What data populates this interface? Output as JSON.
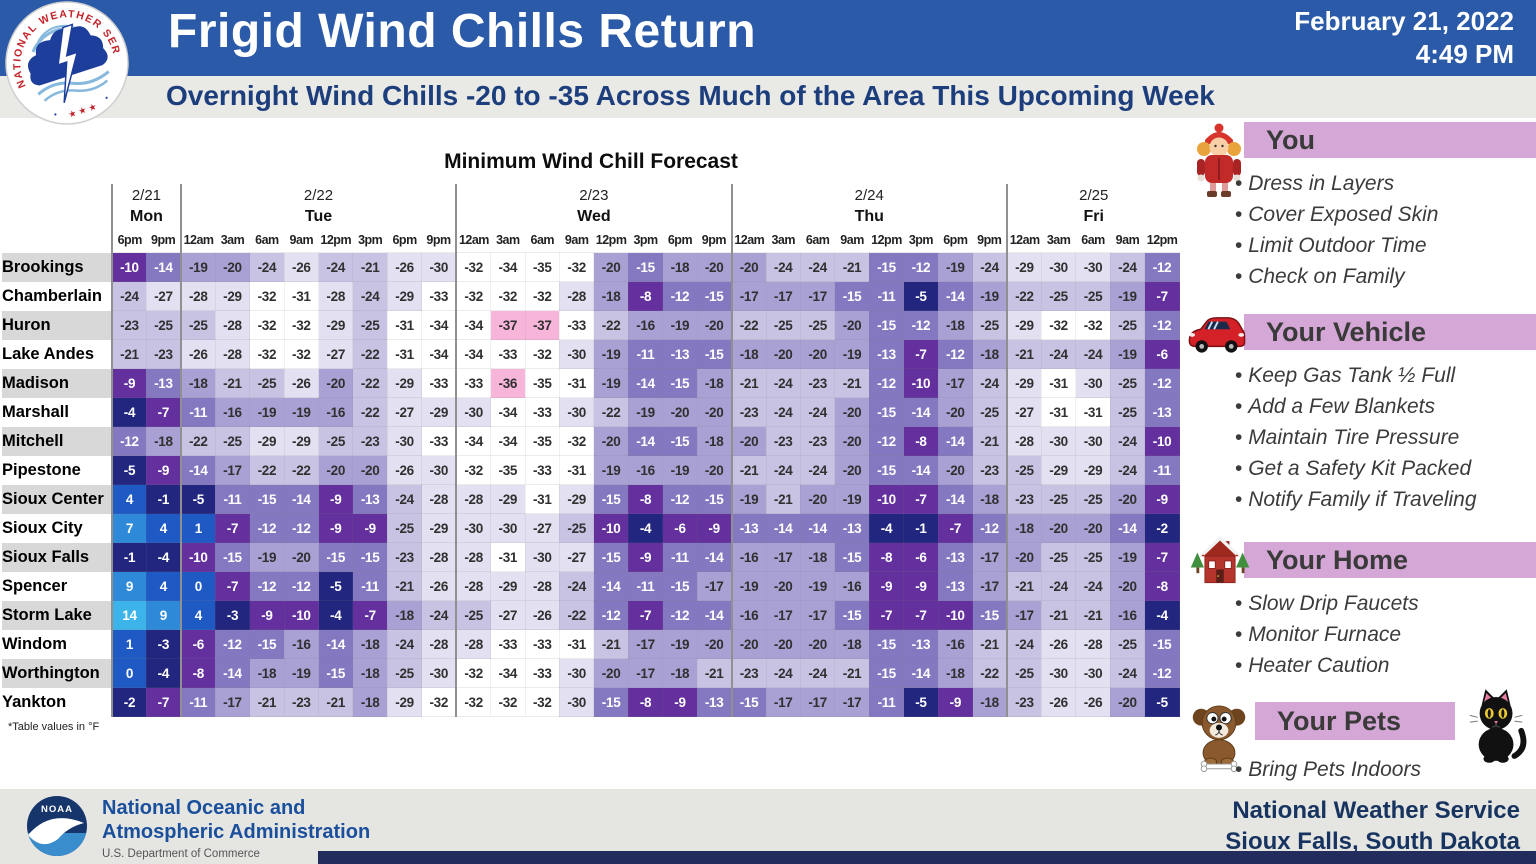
{
  "header": {
    "title": "Frigid Wind Chills Return",
    "subtitle": "Overnight Wind Chills -20 to -35 Across Much of the Area This Upcoming Week",
    "date_line1": "February 21, 2022",
    "date_line2": "4:49 PM",
    "logo": "nws-logo"
  },
  "chart_data": {
    "type": "table",
    "title": "Minimum Wind Chill Forecast",
    "unit_note": "*Table values in °F",
    "day_groups": [
      {
        "date": "2/21",
        "day": "Mon",
        "times": [
          "6pm",
          "9pm"
        ]
      },
      {
        "date": "2/22",
        "day": "Tue",
        "times": [
          "12am",
          "3am",
          "6am",
          "9am",
          "12pm",
          "3pm",
          "6pm",
          "9pm"
        ]
      },
      {
        "date": "2/23",
        "day": "Wed",
        "times": [
          "12am",
          "3am",
          "6am",
          "9am",
          "12pm",
          "3pm",
          "6pm",
          "9pm"
        ]
      },
      {
        "date": "2/24",
        "day": "Thu",
        "times": [
          "12am",
          "3am",
          "6am",
          "9am",
          "12pm",
          "3pm",
          "6pm",
          "9pm"
        ]
      },
      {
        "date": "2/25",
        "day": "Fri",
        "times": [
          "12am",
          "3am",
          "6am",
          "9am",
          "12pm"
        ]
      }
    ],
    "rows": [
      {
        "city": "Brookings",
        "values": [
          -10,
          -14,
          -19,
          -20,
          -24,
          -26,
          -24,
          -21,
          -26,
          -30,
          -32,
          -34,
          -35,
          -32,
          -20,
          -15,
          -18,
          -20,
          -20,
          -24,
          -24,
          -21,
          -15,
          -12,
          -19,
          -24,
          -29,
          -30,
          -30,
          -24,
          -12
        ]
      },
      {
        "city": "Chamberlain",
        "values": [
          -24,
          -27,
          -28,
          -29,
          -32,
          -31,
          -28,
          -24,
          -29,
          -33,
          -32,
          -32,
          -32,
          -28,
          -18,
          -8,
          -12,
          -15,
          -17,
          -17,
          -17,
          -15,
          -11,
          -5,
          -14,
          -19,
          -22,
          -25,
          -25,
          -19,
          -7
        ]
      },
      {
        "city": "Huron",
        "values": [
          -23,
          -25,
          -25,
          -28,
          -32,
          -32,
          -29,
          -25,
          -31,
          -34,
          -34,
          -37,
          -37,
          -33,
          -22,
          -16,
          -19,
          -20,
          -22,
          -25,
          -25,
          -20,
          -15,
          -12,
          -18,
          -25,
          -29,
          -32,
          -32,
          -25,
          -12
        ]
      },
      {
        "city": "Lake Andes",
        "values": [
          -21,
          -23,
          -26,
          -28,
          -32,
          -32,
          -27,
          -22,
          -31,
          -34,
          -34,
          -33,
          -32,
          -30,
          -19,
          -11,
          -13,
          -15,
          -18,
          -20,
          -20,
          -19,
          -13,
          -7,
          -12,
          -18,
          -21,
          -24,
          -24,
          -19,
          -6
        ]
      },
      {
        "city": "Madison",
        "values": [
          -9,
          -13,
          -18,
          -21,
          -25,
          -26,
          -20,
          -22,
          -29,
          -33,
          -33,
          -36,
          -35,
          -31,
          -19,
          -14,
          -15,
          -18,
          -21,
          -24,
          -23,
          -21,
          -12,
          -10,
          -17,
          -24,
          -29,
          -31,
          -30,
          -25,
          -12
        ]
      },
      {
        "city": "Marshall",
        "values": [
          -4,
          -7,
          -11,
          -16,
          -19,
          -19,
          -16,
          -22,
          -27,
          -29,
          -30,
          -34,
          -33,
          -30,
          -22,
          -19,
          -20,
          -20,
          -23,
          -24,
          -24,
          -20,
          -15,
          -14,
          -20,
          -25,
          -27,
          -31,
          -31,
          -25,
          -13
        ]
      },
      {
        "city": "Mitchell",
        "values": [
          -12,
          -18,
          -22,
          -25,
          -29,
          -29,
          -25,
          -23,
          -30,
          -33,
          -34,
          -34,
          -35,
          -32,
          -20,
          -14,
          -15,
          -18,
          -20,
          -23,
          -23,
          -20,
          -12,
          -8,
          -14,
          -21,
          -28,
          -30,
          -30,
          -24,
          -10
        ]
      },
      {
        "city": "Pipestone",
        "values": [
          -5,
          -9,
          -14,
          -17,
          -22,
          -22,
          -20,
          -20,
          -26,
          -30,
          -32,
          -35,
          -33,
          -31,
          -19,
          -16,
          -19,
          -20,
          -21,
          -24,
          -24,
          -20,
          -15,
          -14,
          -20,
          -23,
          -25,
          -29,
          -29,
          -24,
          -11
        ]
      },
      {
        "city": "Sioux Center",
        "values": [
          4,
          -1,
          -5,
          -11,
          -15,
          -14,
          -9,
          -13,
          -24,
          -28,
          -28,
          -29,
          -31,
          -29,
          -15,
          -8,
          -12,
          -15,
          -19,
          -21,
          -20,
          -19,
          -10,
          -7,
          -14,
          -18,
          -23,
          -25,
          -25,
          -20,
          -9
        ]
      },
      {
        "city": "Sioux City",
        "values": [
          7,
          4,
          1,
          -7,
          -12,
          -12,
          -9,
          -9,
          -25,
          -29,
          -30,
          -30,
          -27,
          -25,
          -10,
          -4,
          -6,
          -9,
          -13,
          -14,
          -14,
          -13,
          -4,
          -1,
          -7,
          -12,
          -18,
          -20,
          -20,
          -14,
          -2
        ]
      },
      {
        "city": "Sioux Falls",
        "values": [
          -1,
          -4,
          -10,
          -15,
          -19,
          -20,
          -15,
          -15,
          -23,
          -28,
          -28,
          -31,
          -30,
          -27,
          -15,
          -9,
          -11,
          -14,
          -16,
          -17,
          -18,
          -15,
          -8,
          -6,
          -13,
          -17,
          -20,
          -25,
          -25,
          -19,
          -7
        ]
      },
      {
        "city": "Spencer",
        "values": [
          9,
          4,
          0,
          -7,
          -12,
          -12,
          -5,
          -11,
          -21,
          -26,
          -28,
          -29,
          -28,
          -24,
          -14,
          -11,
          -15,
          -17,
          -19,
          -20,
          -19,
          -16,
          -9,
          -9,
          -13,
          -17,
          -21,
          -24,
          -24,
          -20,
          -8
        ]
      },
      {
        "city": "Storm Lake",
        "values": [
          14,
          9,
          4,
          -3,
          -9,
          -10,
          -4,
          -7,
          -18,
          -24,
          -25,
          -27,
          -26,
          -22,
          -12,
          -7,
          -12,
          -14,
          -16,
          -17,
          -17,
          -15,
          -7,
          -7,
          -10,
          -15,
          -17,
          -21,
          -21,
          -16,
          -4
        ]
      },
      {
        "city": "Windom",
        "values": [
          1,
          -3,
          -6,
          -12,
          -15,
          -16,
          -14,
          -18,
          -24,
          -28,
          -28,
          -33,
          -33,
          -31,
          -21,
          -17,
          -19,
          -20,
          -20,
          -20,
          -20,
          -18,
          -15,
          -13,
          -16,
          -21,
          -24,
          -26,
          -28,
          -25,
          -15
        ]
      },
      {
        "city": "Worthington",
        "values": [
          0,
          -4,
          -8,
          -14,
          -18,
          -19,
          -15,
          -18,
          -25,
          -30,
          -32,
          -34,
          -33,
          -30,
          -20,
          -17,
          -18,
          -21,
          -23,
          -24,
          -24,
          -21,
          -15,
          -14,
          -18,
          -22,
          -25,
          -30,
          -30,
          -24,
          -12
        ]
      },
      {
        "city": "Yankton",
        "values": [
          -2,
          -7,
          -11,
          -17,
          -21,
          -23,
          -21,
          -18,
          -29,
          -32,
          -32,
          -32,
          -32,
          -30,
          -15,
          -8,
          -9,
          -13,
          -15,
          -17,
          -17,
          -17,
          -11,
          -5,
          -9,
          -18,
          -23,
          -26,
          -26,
          -20,
          -5
        ]
      }
    ],
    "color_scale": [
      {
        "ge": 10,
        "bg": "#3cb4ea",
        "fg": "#ffffff"
      },
      {
        "ge": 5,
        "bg": "#2e8ad8",
        "fg": "#ffffff"
      },
      {
        "ge": 0,
        "bg": "#1f5ac4",
        "fg": "#ffffff"
      },
      {
        "ge": -5,
        "bg": "#22267f",
        "fg": "#ffffff"
      },
      {
        "ge": -10,
        "bg": "#63309e",
        "fg": "#ffffff"
      },
      {
        "ge": -15,
        "bg": "#8478c0",
        "fg": "#ffffff"
      },
      {
        "ge": -20,
        "bg": "#a9a0d4",
        "fg": "#303030"
      },
      {
        "ge": -25,
        "bg": "#c9c3e3",
        "fg": "#303030"
      },
      {
        "ge": -30,
        "bg": "#e3e0f1",
        "fg": "#303030"
      },
      {
        "ge": -35,
        "bg": "#ffffff",
        "fg": "#303030"
      },
      {
        "ge": -999,
        "bg": "#f8b5da",
        "fg": "#303030"
      }
    ]
  },
  "sidebar": {
    "sections": [
      {
        "title": "You",
        "icon": "person-winter-icon",
        "items": [
          "Dress in Layers",
          "Cover Exposed Skin",
          "Limit Outdoor Time",
          "Check on Family"
        ]
      },
      {
        "title": "Your Vehicle",
        "icon": "car-icon",
        "items": [
          "Keep Gas Tank ½ Full",
          "Add a Few Blankets",
          "Maintain Tire Pressure",
          "Get a Safety Kit Packed",
          "Notify Family if Traveling"
        ]
      },
      {
        "title": "Your Home",
        "icon": "house-icon",
        "items": [
          "Slow Drip Faucets",
          "Monitor Furnace",
          "Heater Caution"
        ]
      },
      {
        "title": "Your Pets",
        "icon": "dog-icon cat-icon",
        "items": [
          "Bring Pets Indoors"
        ]
      }
    ],
    "accent_color": "#d5a7d6"
  },
  "footer": {
    "noaa_line1": "National Oceanic and",
    "noaa_line2": "Atmospheric Administration",
    "noaa_sub": "U.S. Department of Commerce",
    "right_line1": "National Weather Service",
    "right_line2": "Sioux Falls, South Dakota"
  },
  "colors": {
    "header_blue": "#2a5aa8",
    "subtitle_bg": "#e9e9e6",
    "subtitle_text": "#1d3e7c",
    "footer_bg": "#e5e5e2",
    "footer_navy": "#222d5e",
    "noaa_blue": "#1a4f9c"
  }
}
